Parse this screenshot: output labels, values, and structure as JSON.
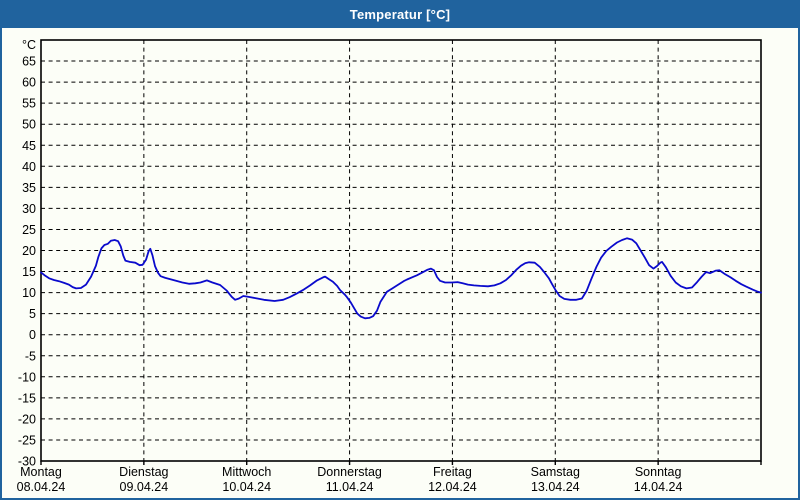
{
  "window": {
    "title": "Temperatur [°C]"
  },
  "colors": {
    "titlebar_bg": "#20639E",
    "window_border": "#20639E",
    "content_bg": "#FCFEF7",
    "title_text": "#FFFFFF",
    "plot_border": "#000000",
    "grid": "#000000",
    "label_text": "#000000",
    "line": "#0A0ACC"
  },
  "chart_data": {
    "type": "line",
    "title": "Temperatur [°C]",
    "unit_label": "°C",
    "ylim": [
      -30,
      70
    ],
    "y_tick_labels": [
      65,
      60,
      55,
      50,
      45,
      40,
      35,
      30,
      25,
      20,
      15,
      10,
      5,
      0,
      -5,
      -10,
      -15,
      -20,
      -25,
      -30
    ],
    "x_hours_span": 168,
    "x_days": [
      {
        "name": "Montag",
        "date": "08.04.24"
      },
      {
        "name": "Dienstag",
        "date": "09.04.24"
      },
      {
        "name": "Mittwoch",
        "date": "10.04.24"
      },
      {
        "name": "Donnerstag",
        "date": "11.04.24"
      },
      {
        "name": "Freitag",
        "date": "12.04.24"
      },
      {
        "name": "Samstag",
        "date": "13.04.24"
      },
      {
        "name": "Sonntag",
        "date": "14.04.24"
      }
    ],
    "grid": {
      "horizontal_step_c": 5,
      "vertical_per_day": true,
      "dashed": true
    },
    "legend_position": "none",
    "series": [
      {
        "name": "Temperatur",
        "unit": "°C",
        "color": "#0A0ACC",
        "points_hour_celsius": [
          [
            0,
            14.8
          ],
          [
            1,
            14.0
          ],
          [
            1.9,
            13.4
          ],
          [
            3,
            13.0
          ],
          [
            4.2,
            12.7
          ],
          [
            5.4,
            12.3
          ],
          [
            6.5,
            11.9
          ],
          [
            7.4,
            11.3
          ],
          [
            8.2,
            11.0
          ],
          [
            9.3,
            11.1
          ],
          [
            10.5,
            11.9
          ],
          [
            11.7,
            13.8
          ],
          [
            12.8,
            16.4
          ],
          [
            13.4,
            18.5
          ],
          [
            14.1,
            20.5
          ],
          [
            14.8,
            21.3
          ],
          [
            15.6,
            21.6
          ],
          [
            16.3,
            22.3
          ],
          [
            17.2,
            22.5
          ],
          [
            18,
            22.2
          ],
          [
            18.6,
            21.0
          ],
          [
            19.2,
            18.8
          ],
          [
            19.7,
            17.6
          ],
          [
            20.7,
            17.3
          ],
          [
            22,
            17.1
          ],
          [
            23,
            16.5
          ],
          [
            23.7,
            16.6
          ],
          [
            24.5,
            17.8
          ],
          [
            25.1,
            19.8
          ],
          [
            25.5,
            20.4
          ],
          [
            26,
            18.9
          ],
          [
            26.6,
            16.3
          ],
          [
            27.3,
            14.7
          ],
          [
            27.9,
            13.9
          ],
          [
            29,
            13.5
          ],
          [
            30.1,
            13.2
          ],
          [
            31.5,
            12.8
          ],
          [
            33,
            12.4
          ],
          [
            34.5,
            12.1
          ],
          [
            36,
            12.2
          ],
          [
            37.2,
            12.4
          ],
          [
            38.7,
            12.9
          ],
          [
            40,
            12.4
          ],
          [
            41.8,
            11.8
          ],
          [
            43.3,
            10.5
          ],
          [
            44.5,
            9.0
          ],
          [
            45.3,
            8.3
          ],
          [
            46.2,
            8.6
          ],
          [
            47.2,
            9.2
          ],
          [
            48.3,
            9.0
          ],
          [
            50,
            8.7
          ],
          [
            52,
            8.3
          ],
          [
            54.5,
            8.0
          ],
          [
            56.5,
            8.3
          ],
          [
            58,
            8.9
          ],
          [
            59.7,
            9.8
          ],
          [
            61.1,
            10.6
          ],
          [
            62.8,
            11.7
          ],
          [
            64.4,
            12.9
          ],
          [
            65.8,
            13.6
          ],
          [
            66.3,
            13.8
          ],
          [
            67.3,
            13.1
          ],
          [
            68.1,
            12.6
          ],
          [
            69.1,
            11.6
          ],
          [
            69.8,
            10.6
          ],
          [
            70.9,
            9.5
          ],
          [
            71.4,
            8.9
          ],
          [
            72.3,
            7.6
          ],
          [
            73,
            6.4
          ],
          [
            73.8,
            5.0
          ],
          [
            74.6,
            4.3
          ],
          [
            75.6,
            3.9
          ],
          [
            76.6,
            4.0
          ],
          [
            77.5,
            4.4
          ],
          [
            78.4,
            5.7
          ],
          [
            79.2,
            7.8
          ],
          [
            80.7,
            10.2
          ],
          [
            82,
            11.0
          ],
          [
            83.1,
            11.7
          ],
          [
            84.6,
            12.7
          ],
          [
            85.4,
            13.1
          ],
          [
            87,
            13.8
          ],
          [
            87.7,
            14.1
          ],
          [
            89,
            14.8
          ],
          [
            90.1,
            15.4
          ],
          [
            91,
            15.7
          ],
          [
            91.7,
            15.3
          ],
          [
            92.4,
            13.7
          ],
          [
            93.1,
            12.8
          ],
          [
            94.3,
            12.4
          ],
          [
            95.9,
            12.4
          ],
          [
            97.2,
            12.5
          ],
          [
            98.4,
            12.2
          ],
          [
            99.6,
            11.9
          ],
          [
            101,
            11.7
          ],
          [
            102.5,
            11.6
          ],
          [
            104.3,
            11.5
          ],
          [
            105.8,
            11.7
          ],
          [
            107.2,
            12.2
          ],
          [
            108.5,
            13.0
          ],
          [
            109.8,
            14.2
          ],
          [
            111,
            15.5
          ],
          [
            112,
            16.4
          ],
          [
            113,
            17.0
          ],
          [
            113.9,
            17.2
          ],
          [
            115.2,
            17.1
          ],
          [
            116.4,
            16.1
          ],
          [
            117.4,
            14.9
          ],
          [
            118.5,
            13.4
          ],
          [
            119.3,
            11.9
          ],
          [
            120,
            10.7
          ],
          [
            121,
            9.2
          ],
          [
            122.1,
            8.5
          ],
          [
            123.5,
            8.3
          ],
          [
            124.9,
            8.3
          ],
          [
            126.2,
            8.6
          ],
          [
            127.3,
            10.4
          ],
          [
            128.4,
            13.2
          ],
          [
            129.6,
            16.1
          ],
          [
            130.7,
            18.3
          ],
          [
            131.9,
            19.9
          ],
          [
            133.1,
            20.9
          ],
          [
            134.4,
            21.9
          ],
          [
            135.6,
            22.5
          ],
          [
            136.7,
            22.9
          ],
          [
            137.9,
            22.6
          ],
          [
            138.9,
            21.7
          ],
          [
            139.9,
            20.0
          ],
          [
            140.9,
            18.3
          ],
          [
            141.9,
            16.5
          ],
          [
            142.9,
            15.7
          ],
          [
            143.7,
            16.3
          ],
          [
            144.5,
            17.1
          ],
          [
            144.9,
            17.3
          ],
          [
            145.8,
            16.0
          ],
          [
            146.9,
            14.0
          ],
          [
            148.1,
            12.4
          ],
          [
            149.3,
            11.5
          ],
          [
            150.6,
            11.0
          ],
          [
            151.9,
            11.2
          ],
          [
            153.1,
            12.5
          ],
          [
            154.1,
            13.7
          ],
          [
            155.2,
            14.9
          ],
          [
            156.1,
            14.6
          ],
          [
            157.4,
            15.2
          ],
          [
            158.3,
            15.3
          ],
          [
            159.6,
            14.4
          ],
          [
            160.9,
            13.6
          ],
          [
            162.1,
            12.8
          ],
          [
            163.4,
            12.0
          ],
          [
            164.6,
            11.4
          ],
          [
            166.1,
            10.7
          ],
          [
            167.3,
            10.2
          ],
          [
            168,
            10.0
          ]
        ]
      }
    ]
  }
}
